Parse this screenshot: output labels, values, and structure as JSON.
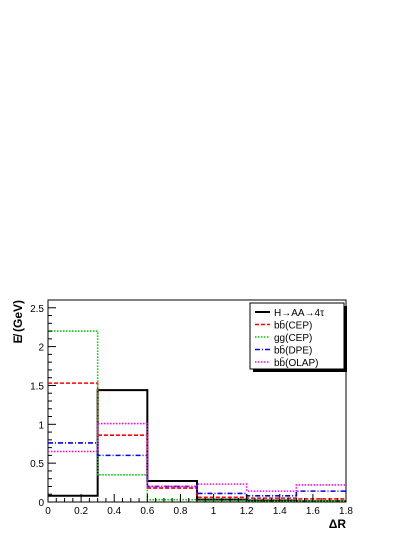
{
  "chart_data": {
    "type": "histogram",
    "xlabel": "ΔR",
    "ylabel": "E̸ (GeV)",
    "xlim": [
      0,
      1.8
    ],
    "ylim": [
      0,
      2.6
    ],
    "x_ticks": [
      0,
      0.2,
      0.4,
      0.6,
      0.8,
      1,
      1.2,
      1.4,
      1.6,
      1.8
    ],
    "x_tick_labels": [
      "0",
      "0.2",
      "0.4",
      "0.6",
      "0.8",
      "1",
      "1.2",
      "1.4",
      "1.6",
      "1.8"
    ],
    "y_ticks": [
      0,
      0.5,
      1,
      1.5,
      2,
      2.5
    ],
    "y_tick_labels": [
      "0",
      "0.5",
      "1",
      "1.5",
      "2",
      "2.5"
    ],
    "bin_edges": [
      0,
      0.3,
      0.6,
      0.9,
      1.2,
      1.5,
      1.8
    ],
    "grid": false,
    "legend_position": "top-right",
    "series": [
      {
        "name": "H→AA→4τ",
        "values": [
          0.08,
          1.44,
          0.27,
          0.03,
          0.02,
          0.01
        ],
        "color": "#000000",
        "dash": "solid"
      },
      {
        "name": "bb̄(CEP)",
        "values": [
          1.53,
          0.86,
          0.18,
          0.06,
          0.05,
          0.04
        ],
        "color": "#ff0000",
        "dash": "dashed"
      },
      {
        "name": "gg(CEP)",
        "values": [
          2.2,
          0.35,
          0.03,
          0.02,
          0.01,
          0.01
        ],
        "color": "#00cc00",
        "dash": "dotted"
      },
      {
        "name": "bb̄(DPE)",
        "values": [
          0.76,
          0.6,
          0.2,
          0.11,
          0.08,
          0.14
        ],
        "color": "#0000ff",
        "dash": "dashdot"
      },
      {
        "name": "bb̄(OLAP)",
        "values": [
          0.65,
          1.01,
          0.2,
          0.23,
          0.14,
          0.22
        ],
        "color": "#ff00ff",
        "dash": "dotted"
      }
    ]
  }
}
